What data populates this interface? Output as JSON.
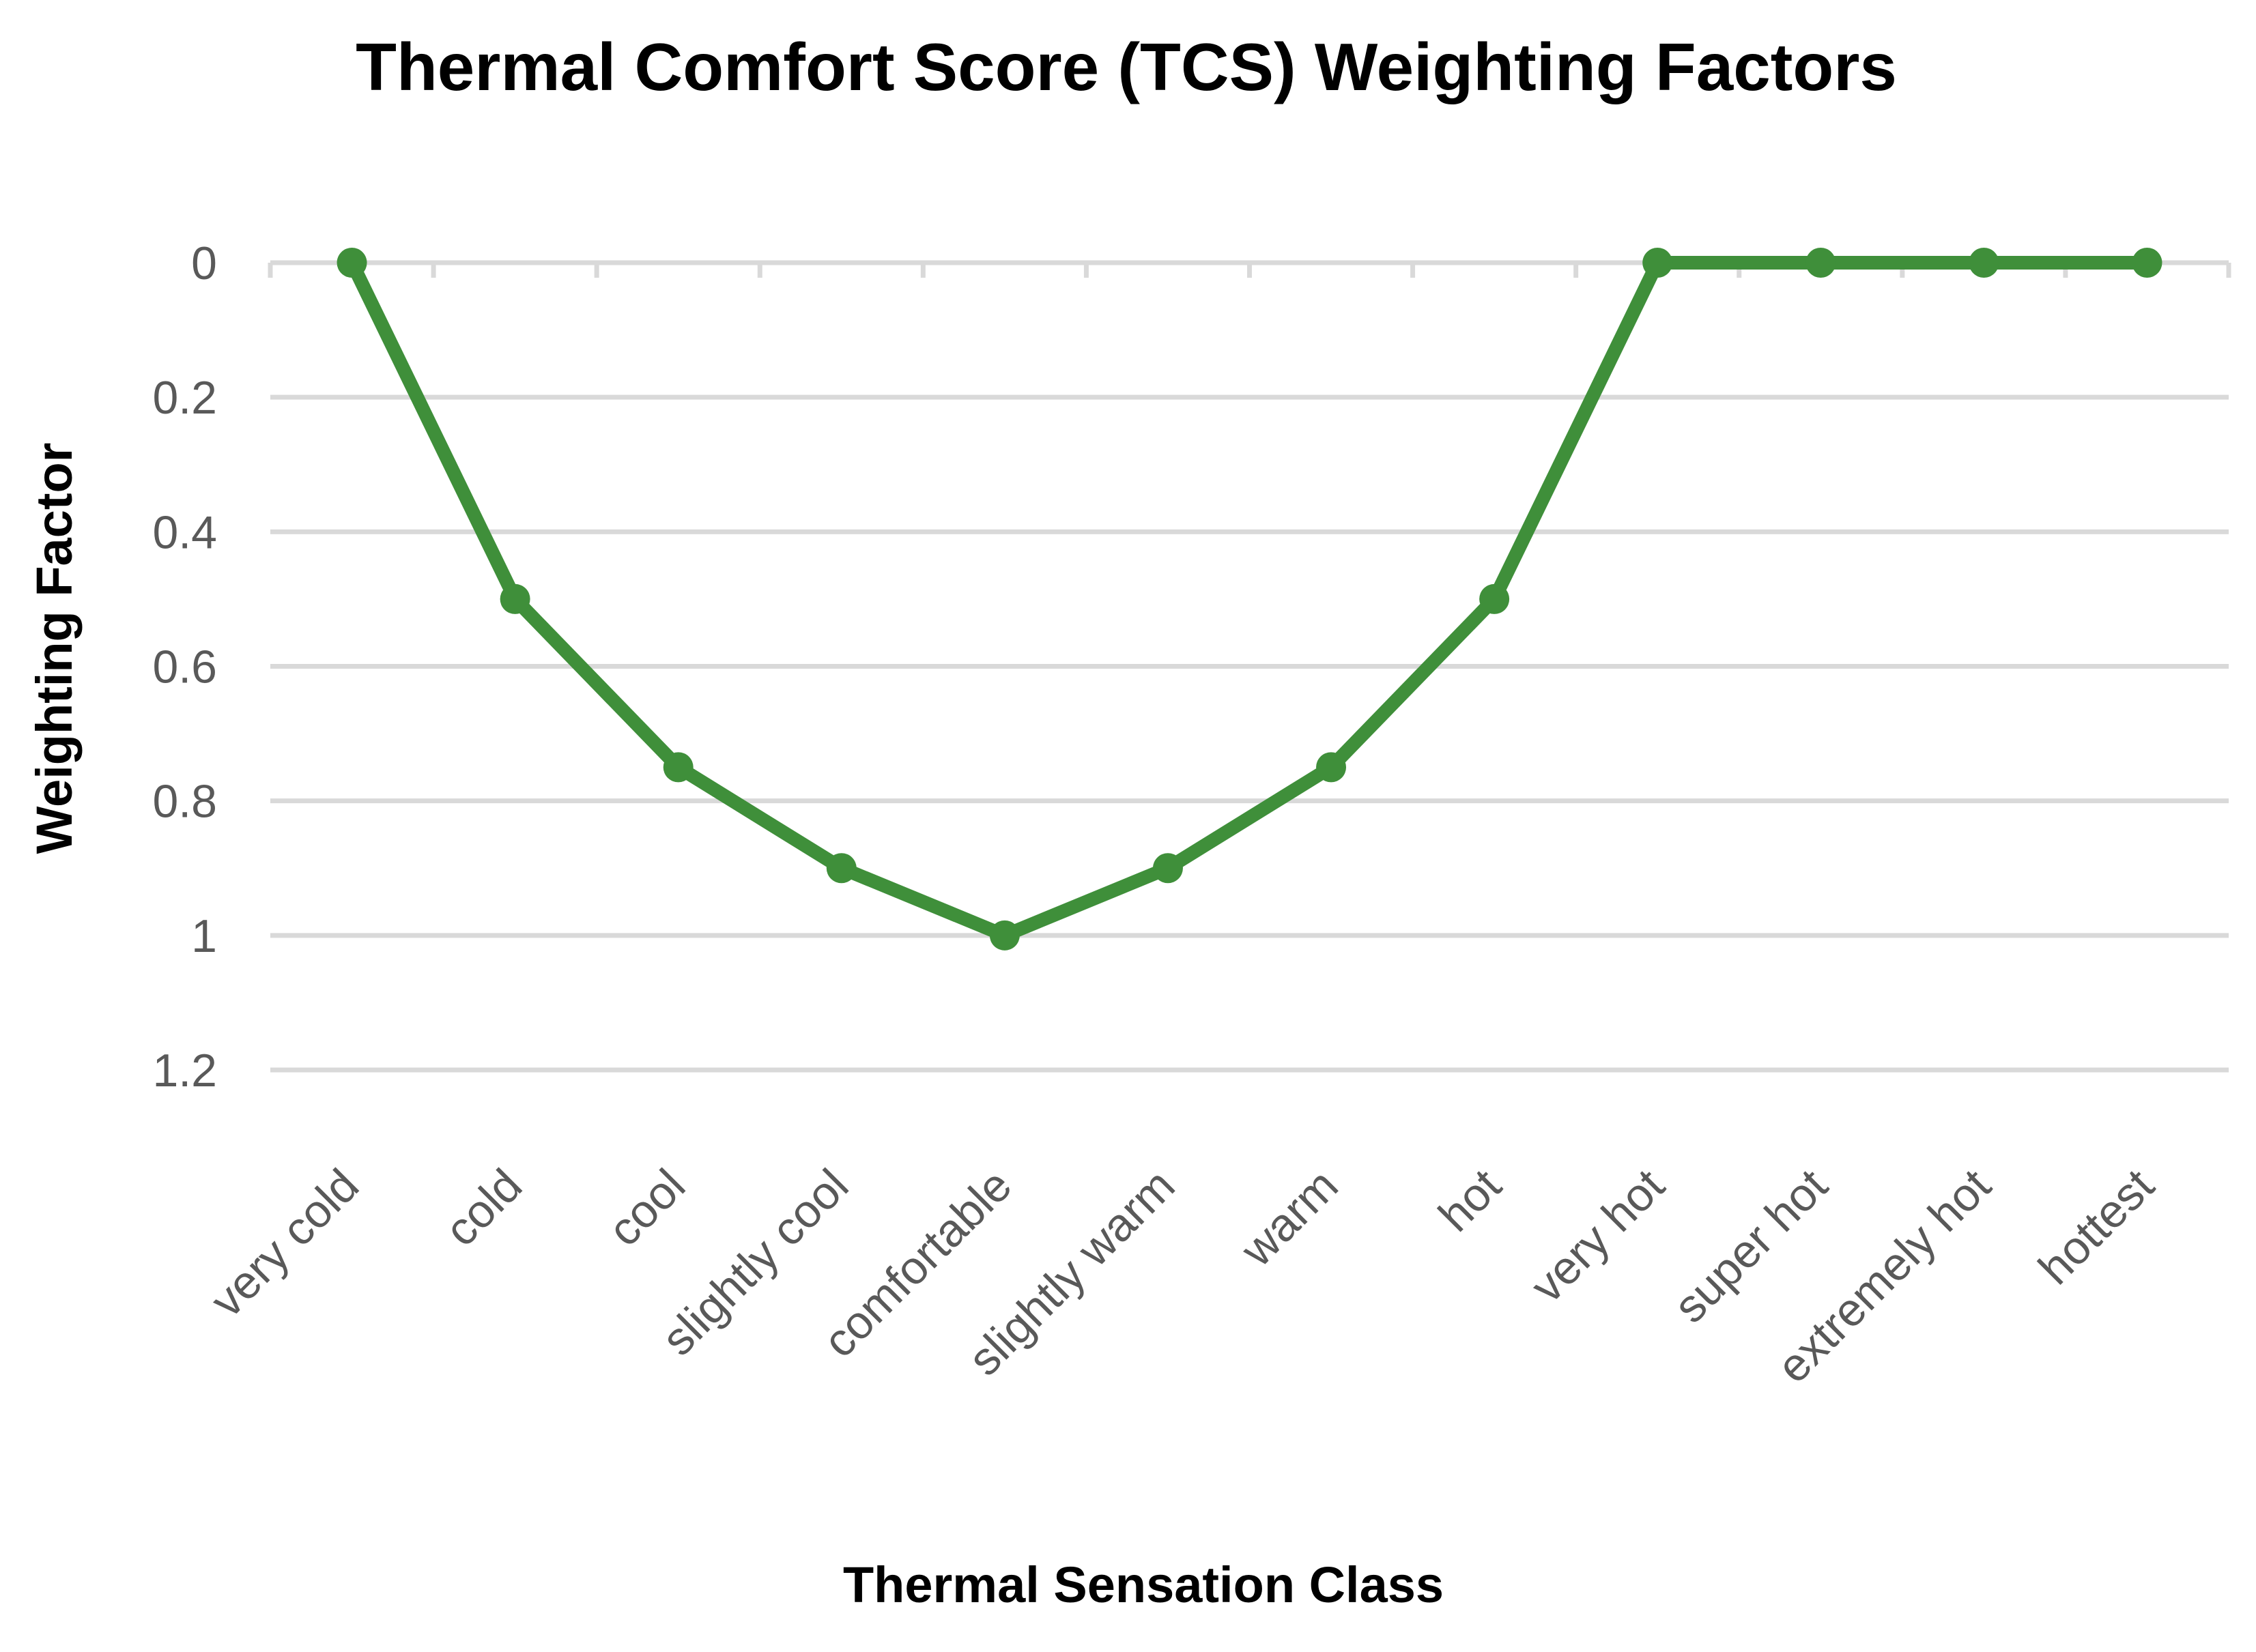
{
  "chart_data": {
    "type": "line",
    "title": "Thermal Comfort Score (TCS) Weighting Factors",
    "xlabel": "Thermal Sensation Class",
    "ylabel": "Weighting Factor",
    "categories": [
      "very cold",
      "cold",
      "cool",
      "slightly cool",
      "comfortable",
      "slightly warm",
      "warm",
      "hot",
      "very hot",
      "super hot",
      "extremely hot",
      "hottest"
    ],
    "series": [
      {
        "values": [
          0,
          0.5,
          0.75,
          0.9,
          1,
          0.9,
          0.75,
          0.5,
          0,
          0,
          0,
          0
        ],
        "color": "#3f8f3a"
      }
    ],
    "ylim": [
      0,
      1.2
    ],
    "yticks": [
      "0",
      "0.2",
      "0.4",
      "0.6",
      "0.8",
      "1",
      "1.2"
    ],
    "y_axis_reversed": true,
    "grid": true,
    "legend": "none"
  }
}
